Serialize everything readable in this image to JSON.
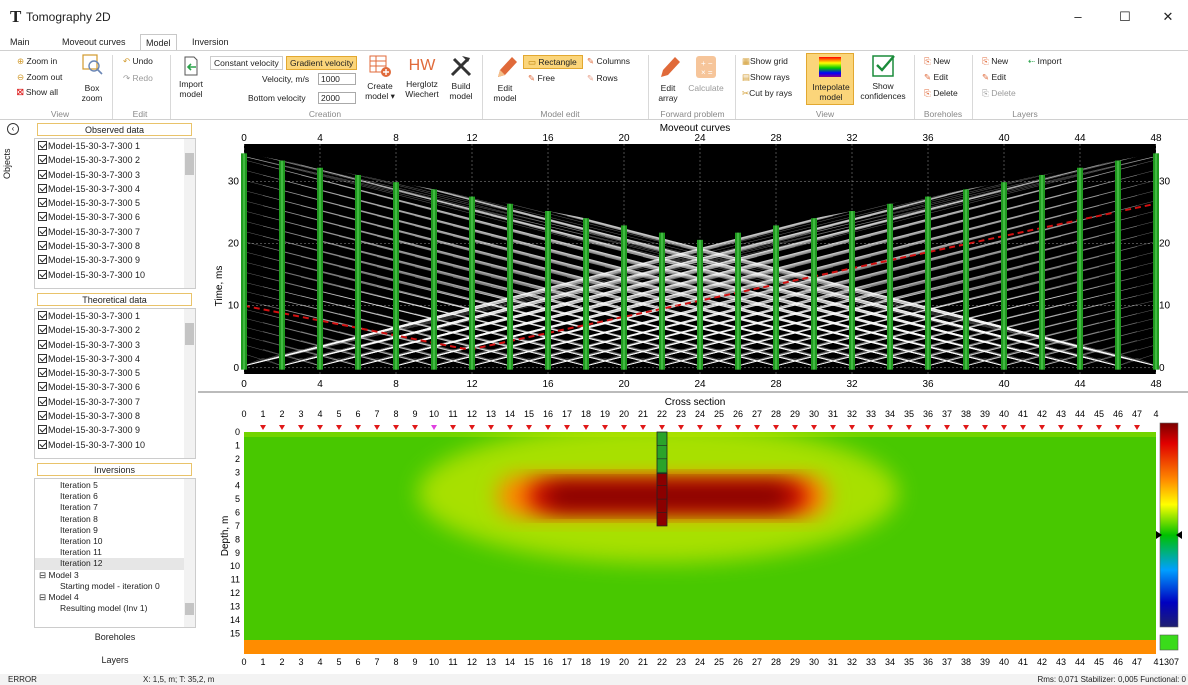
{
  "app": {
    "logo": "T",
    "title": "Tomography 2D",
    "min": "–",
    "max": "☐",
    "close": "✕"
  },
  "tabs": [
    "Main",
    "Moveout curves",
    "Model",
    "Inversion"
  ],
  "ribbon": {
    "view": {
      "zoom_in": "Zoom in",
      "zoom_out": "Zoom out",
      "show_all": "Show all",
      "box_zoom": "Box zoom",
      "group": "View"
    },
    "edit": {
      "undo": "Undo",
      "redo": "Redo",
      "group": "Edit"
    },
    "creation": {
      "import_model": "Import model",
      "constant_velocity": "Constant velocity",
      "gradient_velocity": "Gradient velocity",
      "velocity_label": "Velocity, m/s",
      "velocity_value": "1000",
      "bottom_label": "Bottom velocity",
      "bottom_value": "2000",
      "create_model": "Create model ▾",
      "herglotz_icon": "HW",
      "herglotz": "Herglotz Wiechert",
      "build_model": "Build model",
      "group": "Creation"
    },
    "model_edit": {
      "edit_model": "Edit model",
      "rectangle": "Rectangle",
      "free": "Free",
      "columns": "Columns",
      "rows": "Rows",
      "group": "Model edit"
    },
    "forward": {
      "edit_array": "Edit array",
      "calculate": "Calculate",
      "group": "Forward problem"
    },
    "view2": {
      "show_grid": "Show grid",
      "show_rays": "Show rays",
      "cut_by_rays": "Cut by rays",
      "interpolate": "Intepolate model",
      "show_conf": "Show confidences",
      "group": "View"
    },
    "boreholes": {
      "new": "New",
      "edit": "Edit",
      "delete": "Delete",
      "group": "Boreholes"
    },
    "layers": {
      "new": "New",
      "import": "Import",
      "edit": "Edit",
      "delete": "Delete",
      "group": "Layers"
    }
  },
  "sidebar": {
    "objects_label": "Objects",
    "observed_header": "Observed data",
    "observed_items": [
      "Model-15-30-3-7-300 1",
      "Model-15-30-3-7-300 2",
      "Model-15-30-3-7-300 3",
      "Model-15-30-3-7-300 4",
      "Model-15-30-3-7-300 5",
      "Model-15-30-3-7-300 6",
      "Model-15-30-3-7-300 7",
      "Model-15-30-3-7-300 8",
      "Model-15-30-3-7-300 9",
      "Model-15-30-3-7-300 10"
    ],
    "theoretical_header": "Theoretical data",
    "theoretical_items": [
      "Model-15-30-3-7-300 1",
      "Model-15-30-3-7-300 2",
      "Model-15-30-3-7-300 3",
      "Model-15-30-3-7-300 4",
      "Model-15-30-3-7-300 5",
      "Model-15-30-3-7-300 6",
      "Model-15-30-3-7-300 7",
      "Model-15-30-3-7-300 8",
      "Model-15-30-3-7-300 9",
      "Model-15-30-3-7-300 10"
    ],
    "inversions_header": "Inversions",
    "inversions": [
      {
        "text": "Iteration 5",
        "level": 2
      },
      {
        "text": "Iteration 6",
        "level": 2
      },
      {
        "text": "Iteration 7",
        "level": 2
      },
      {
        "text": "Iteration 8",
        "level": 2
      },
      {
        "text": "Iteration 9",
        "level": 2
      },
      {
        "text": "Iteration 10",
        "level": 2
      },
      {
        "text": "Iteration 11",
        "level": 2
      },
      {
        "text": "Iteration 12",
        "level": 2,
        "selected": true
      },
      {
        "text": "⊟ Model 3",
        "level": 1
      },
      {
        "text": "Starting model - iteration 0",
        "level": 2
      },
      {
        "text": "⊟ Model 4",
        "level": 1
      },
      {
        "text": "Resulting model (Inv 1)",
        "level": 2
      }
    ],
    "boreholes": "Boreholes",
    "layers": "Layers"
  },
  "moveout": {
    "title": "Moveout curves",
    "ylabel": "Time, ms",
    "xticks": [
      "0",
      "4",
      "8",
      "12",
      "16",
      "20",
      "24",
      "28",
      "32",
      "36",
      "40",
      "44",
      "48"
    ],
    "yticks": [
      "0",
      "10",
      "20",
      "30"
    ],
    "xrange": [
      0,
      48
    ],
    "yrange": [
      -1,
      36
    ]
  },
  "section": {
    "title": "Cross section",
    "ylabel": "Depth, m",
    "xticks": [
      "0",
      "1",
      "2",
      "3",
      "4",
      "5",
      "6",
      "7",
      "8",
      "9",
      "10",
      "11",
      "12",
      "13",
      "14",
      "15",
      "16",
      "17",
      "18",
      "19",
      "20",
      "21",
      "22",
      "23",
      "24",
      "25",
      "26",
      "27",
      "28",
      "29",
      "30",
      "31",
      "32",
      "33",
      "34",
      "35",
      "36",
      "37",
      "38",
      "39",
      "40",
      "41",
      "42",
      "43",
      "44",
      "45",
      "46",
      "47",
      "4"
    ],
    "yticks": [
      "0",
      "1",
      "2",
      "3",
      "4",
      "5",
      "6",
      "7",
      "8",
      "9",
      "10",
      "11",
      "12",
      "13",
      "14",
      "15"
    ],
    "colorbar_value": "1307",
    "colors": {
      "background": "#48c800",
      "anomaly": "#8b0000"
    }
  },
  "status": {
    "left": "ERROR",
    "coords": "X: 1,5, m; T: 35,2, m",
    "right": "Rms: 0,071 Stabilizer: 0,005 Functional: 0"
  }
}
